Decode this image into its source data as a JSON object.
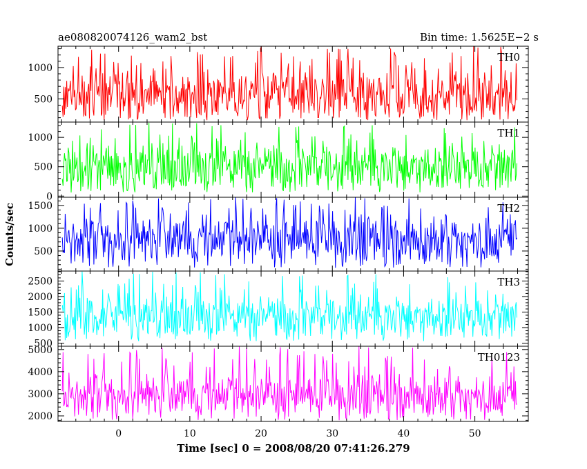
{
  "header": {
    "title": "ae080820074126_wam2_bst",
    "bin_time": "Bin time: 1.5625E−2 s"
  },
  "chart_data": {
    "type": "line",
    "x": {
      "label": "Time [sec] 0 = 2008/08/20 07:41:26.279",
      "range": [
        -8.5,
        57.5
      ],
      "data_range": [
        -7.9,
        55.9
      ],
      "ticks": [
        0,
        10,
        20,
        30,
        40,
        50
      ],
      "minor_tick_step": 2
    },
    "ylabel": "Counts/sec",
    "panels": [
      {
        "name": "TH0",
        "color": "#ff0000",
        "ylim": [
          130,
          1340
        ],
        "yticks": [
          500,
          1000
        ],
        "minor_step": 100,
        "baseline": 600,
        "spread": 270,
        "low": 160,
        "high": 1340
      },
      {
        "name": "TH1",
        "color": "#00ff00",
        "ylim": [
          -20,
          1260
        ],
        "yticks": [
          0,
          500,
          1000
        ],
        "minor_step": 100,
        "baseline": 540,
        "spread": 270,
        "low": 60,
        "high": 1260
      },
      {
        "name": "TH2",
        "color": "#0000ff",
        "ylim": [
          60,
          1680
        ],
        "yticks": [
          500,
          1000,
          1500
        ],
        "minor_step": 100,
        "baseline": 820,
        "spread": 330,
        "low": 130,
        "high": 1680
      },
      {
        "name": "TH3",
        "color": "#00ffff",
        "ylim": [
          400,
          2820
        ],
        "yticks": [
          500,
          1000,
          1500,
          2000,
          2500
        ],
        "minor_step": 100,
        "baseline": 1430,
        "spread": 420,
        "low": 560,
        "high": 2820
      },
      {
        "name": "TH0123",
        "color": "#ff00ff",
        "ylim": [
          1750,
          5150
        ],
        "yticks": [
          2000,
          3000,
          4000,
          5000
        ],
        "minor_step": 200,
        "baseline": 3050,
        "spread": 600,
        "low": 1800,
        "high": 5150
      }
    ]
  }
}
